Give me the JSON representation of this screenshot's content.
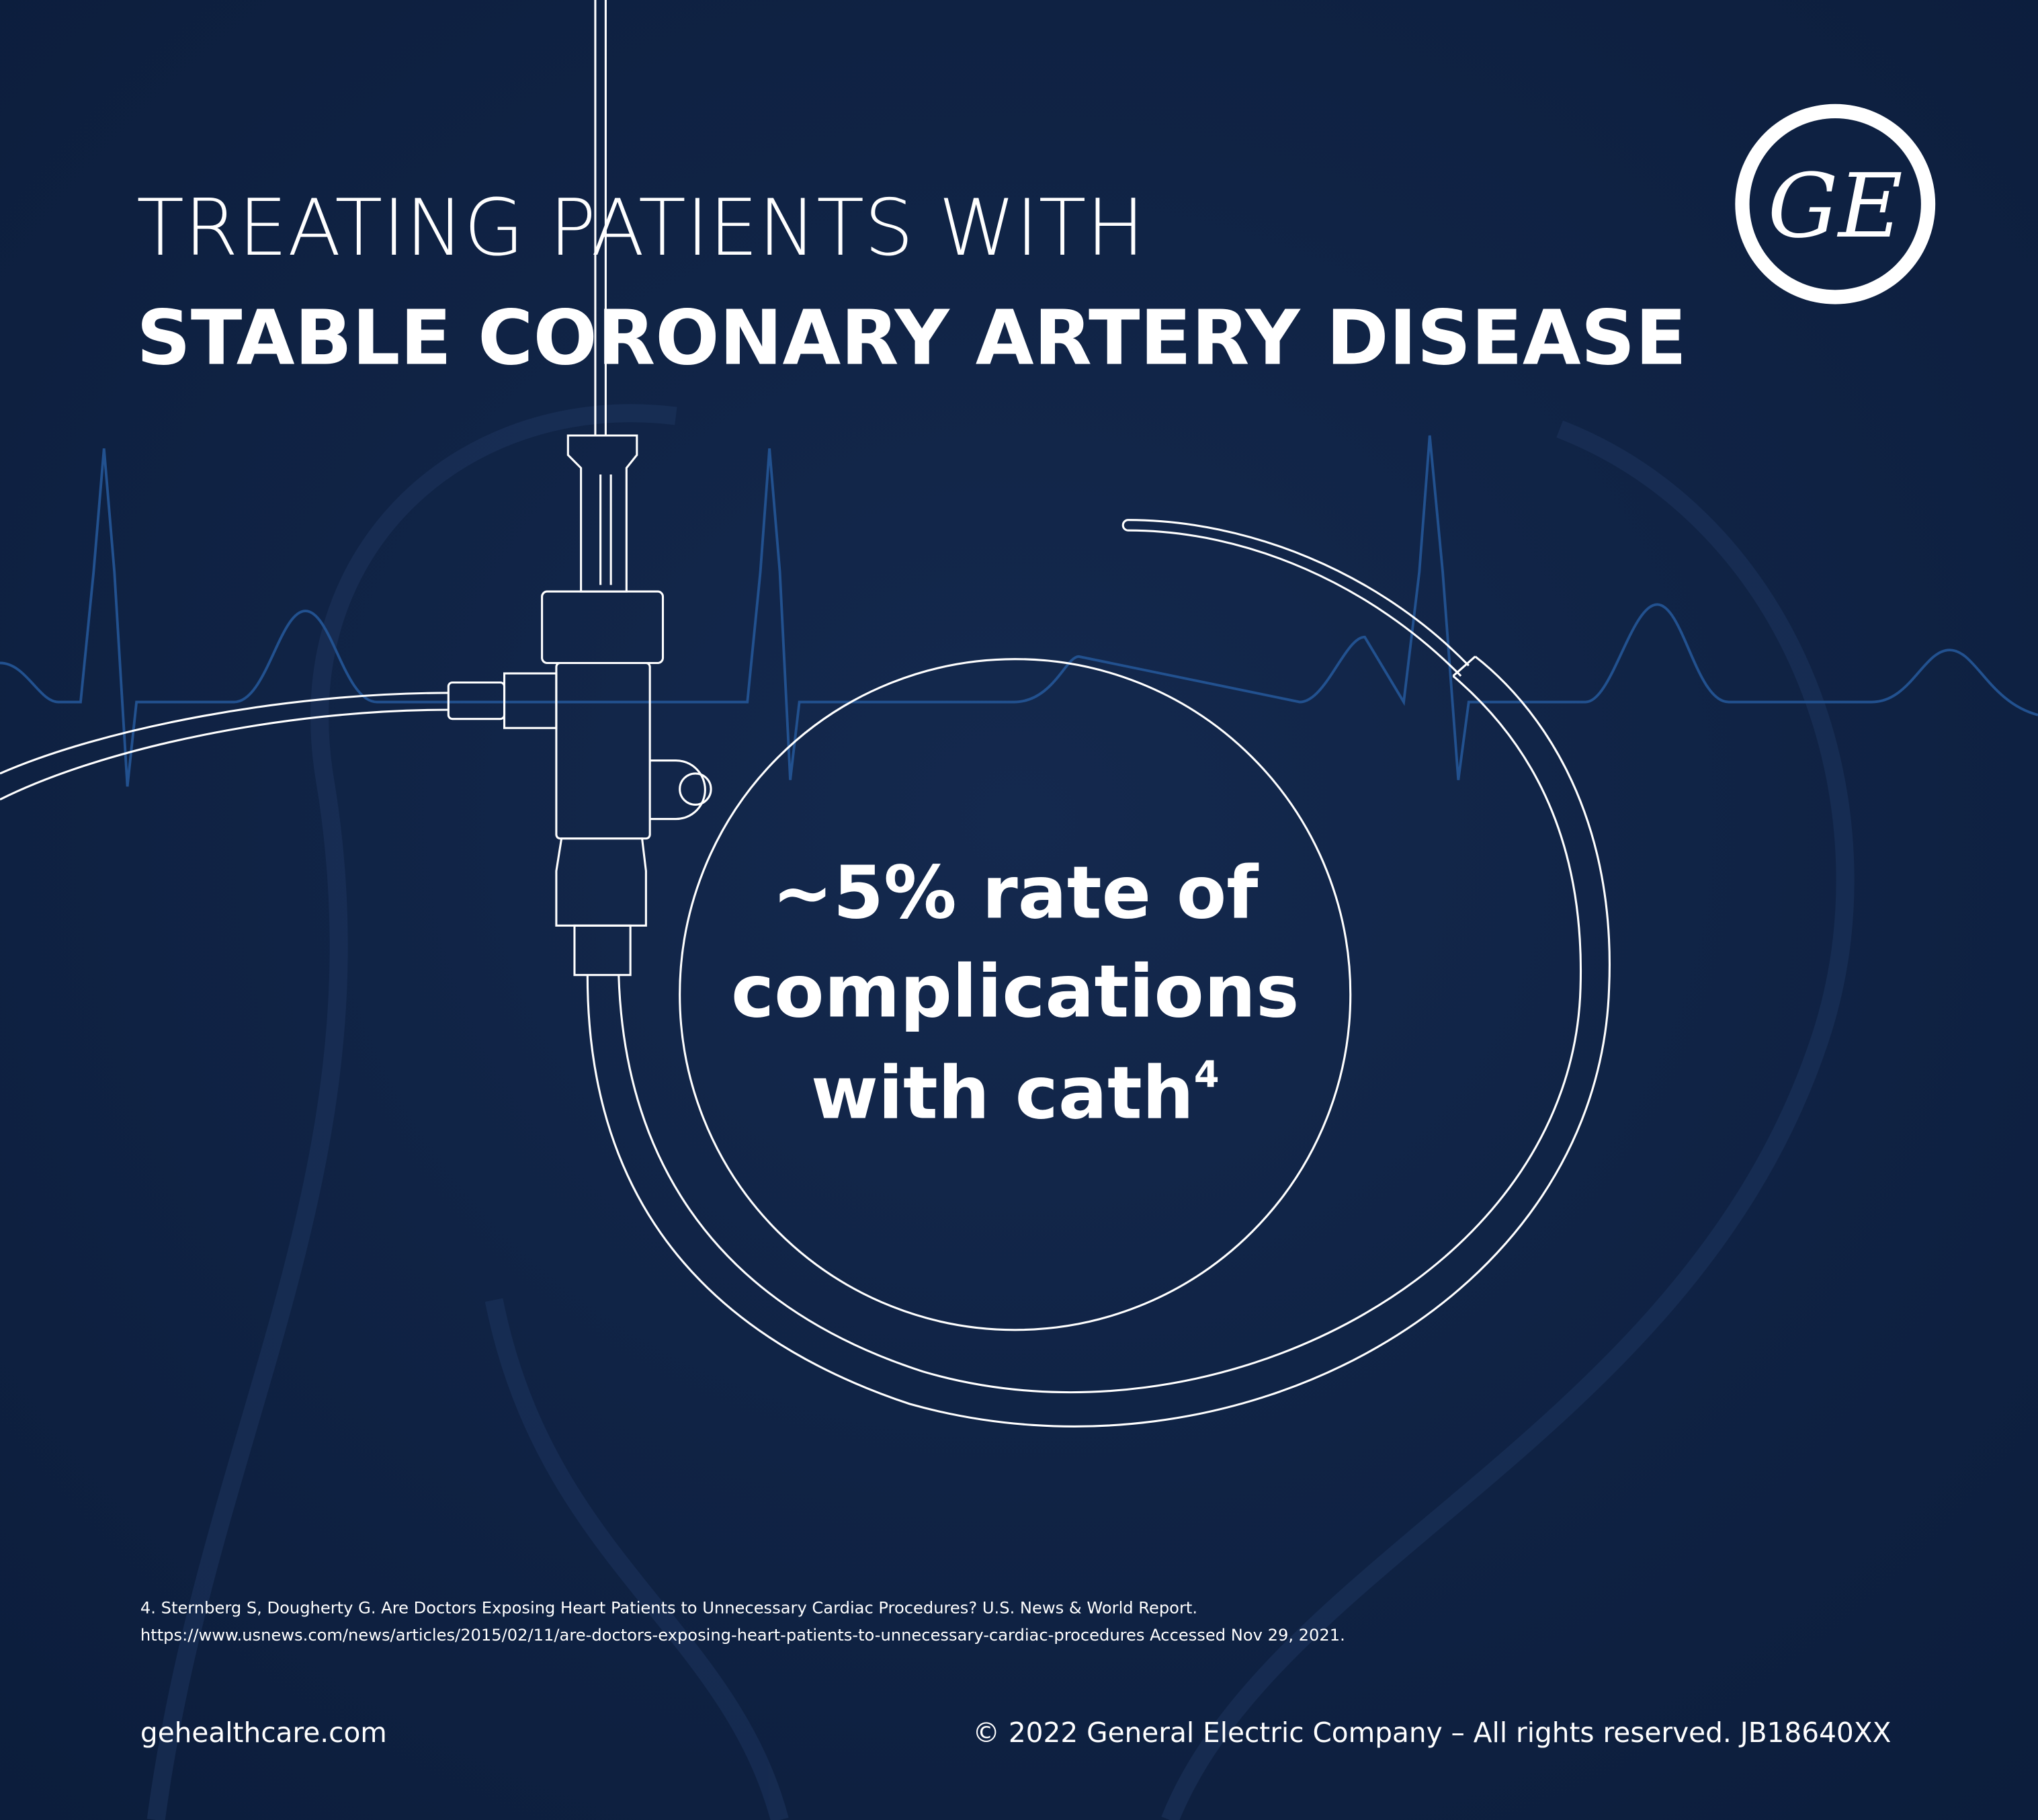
{
  "header": {
    "title_line1": "TREATING PATIENTS WITH",
    "title_line2": "STABLE CORONARY ARTERY DISEASE"
  },
  "logo": "GE",
  "statistic": {
    "lines": [
      "~5% rate of",
      "complications",
      "with cath"
    ],
    "footnote_ref": "4"
  },
  "footnote": {
    "lines": [
      "4. Sternberg S, Dougherty G. Are Doctors Exposing Heart Patients to Unnecessary Cardiac Procedures? U.S. News & World Report.",
      "https://www.usnews.com/news/articles/2015/02/11/are-doctors-exposing-heart-patients-to-unnecessary-cardiac-procedures Accessed Nov 29, 2021."
    ]
  },
  "footer": {
    "website": "gehealthcare.com",
    "copyright": "© 2022 General Electric Company – All rights reserved. JB18640XX"
  }
}
